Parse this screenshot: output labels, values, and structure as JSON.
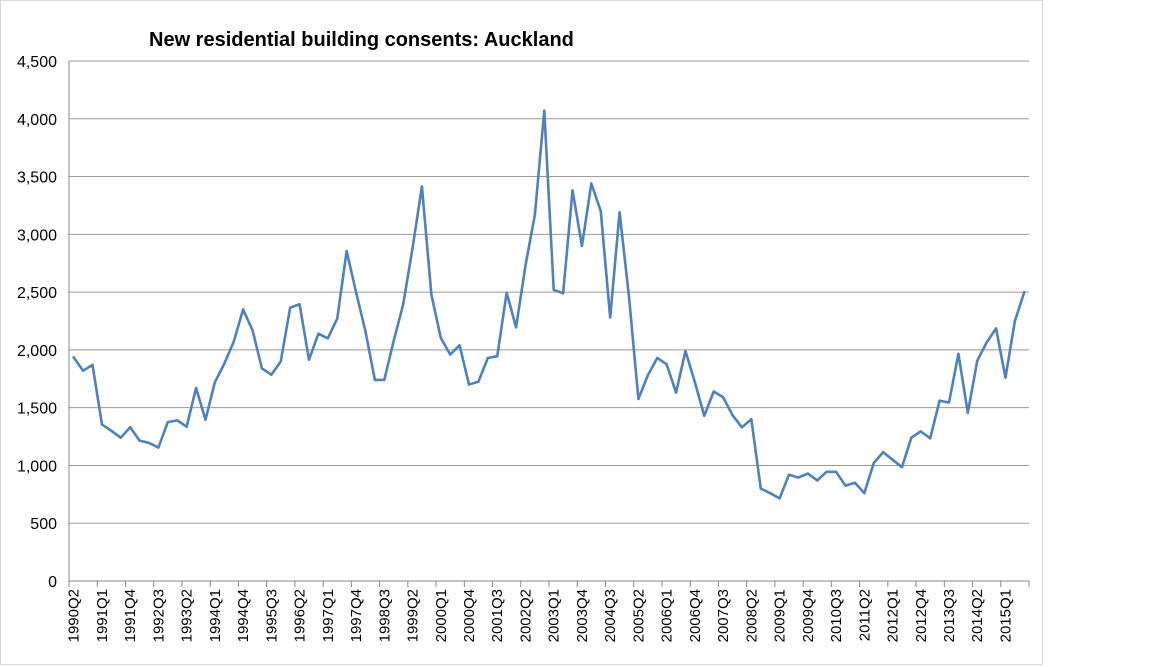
{
  "chart_data": {
    "type": "line",
    "title": "New residential building consents: Auckland",
    "xlabel": "",
    "ylabel": "",
    "ylim": [
      0,
      4500
    ],
    "yticks": [
      0,
      500,
      1000,
      1500,
      2000,
      2500,
      3000,
      3500,
      4000,
      4500
    ],
    "ytick_labels": [
      "0",
      "500",
      "1,000",
      "1,500",
      "2,000",
      "2,500",
      "3,000",
      "3,500",
      "4,000",
      "4,500"
    ],
    "xtick_labels": [
      "1990Q2",
      "1991Q1",
      "1991Q4",
      "1992Q3",
      "1993Q2",
      "1994Q1",
      "1994Q4",
      "1995Q3",
      "1996Q2",
      "1997Q1",
      "1997Q4",
      "1998Q3",
      "1999Q2",
      "2000Q1",
      "2000Q4",
      "2001Q3",
      "2002Q2",
      "2003Q1",
      "2003Q4",
      "2004Q3",
      "2005Q2",
      "2006Q1",
      "2006Q4",
      "2007Q3",
      "2008Q2",
      "2009Q1",
      "2009Q4",
      "2010Q3",
      "2011Q2",
      "2012Q1",
      "2012Q4",
      "2013Q3",
      "2014Q2",
      "2015Q1"
    ],
    "grid": true,
    "legend": "none",
    "line_color": "#4f81bd",
    "series": [
      {
        "values": [
          1935,
          1820,
          1870,
          1355,
          1300,
          1240,
          1330,
          1215,
          1195,
          1155,
          1375,
          1390,
          1335,
          1670,
          1395,
          1720,
          1880,
          2070,
          2350,
          2170,
          1840,
          1785,
          1900,
          2365,
          2395,
          1915,
          2140,
          2100,
          2270,
          2855,
          2500,
          2160,
          1740,
          1740,
          2080,
          2390,
          2880,
          3415,
          2480,
          2105,
          1960,
          2040,
          1700,
          1725,
          1930,
          1945,
          2495,
          2195,
          2730,
          3170,
          4070,
          2520,
          2490,
          3380,
          2900,
          3440,
          3200,
          2280,
          3190,
          2460,
          1575,
          1780,
          1930,
          1875,
          1630,
          1990,
          1720,
          1430,
          1640,
          1590,
          1435,
          1330,
          1400,
          800,
          760,
          715,
          920,
          895,
          930,
          870,
          945,
          945,
          825,
          850,
          760,
          1020,
          1115,
          1050,
          985,
          1240,
          1295,
          1235,
          1560,
          1545,
          1965,
          1455,
          1905,
          2065,
          2185,
          1760,
          2250,
          2500
        ]
      }
    ]
  }
}
